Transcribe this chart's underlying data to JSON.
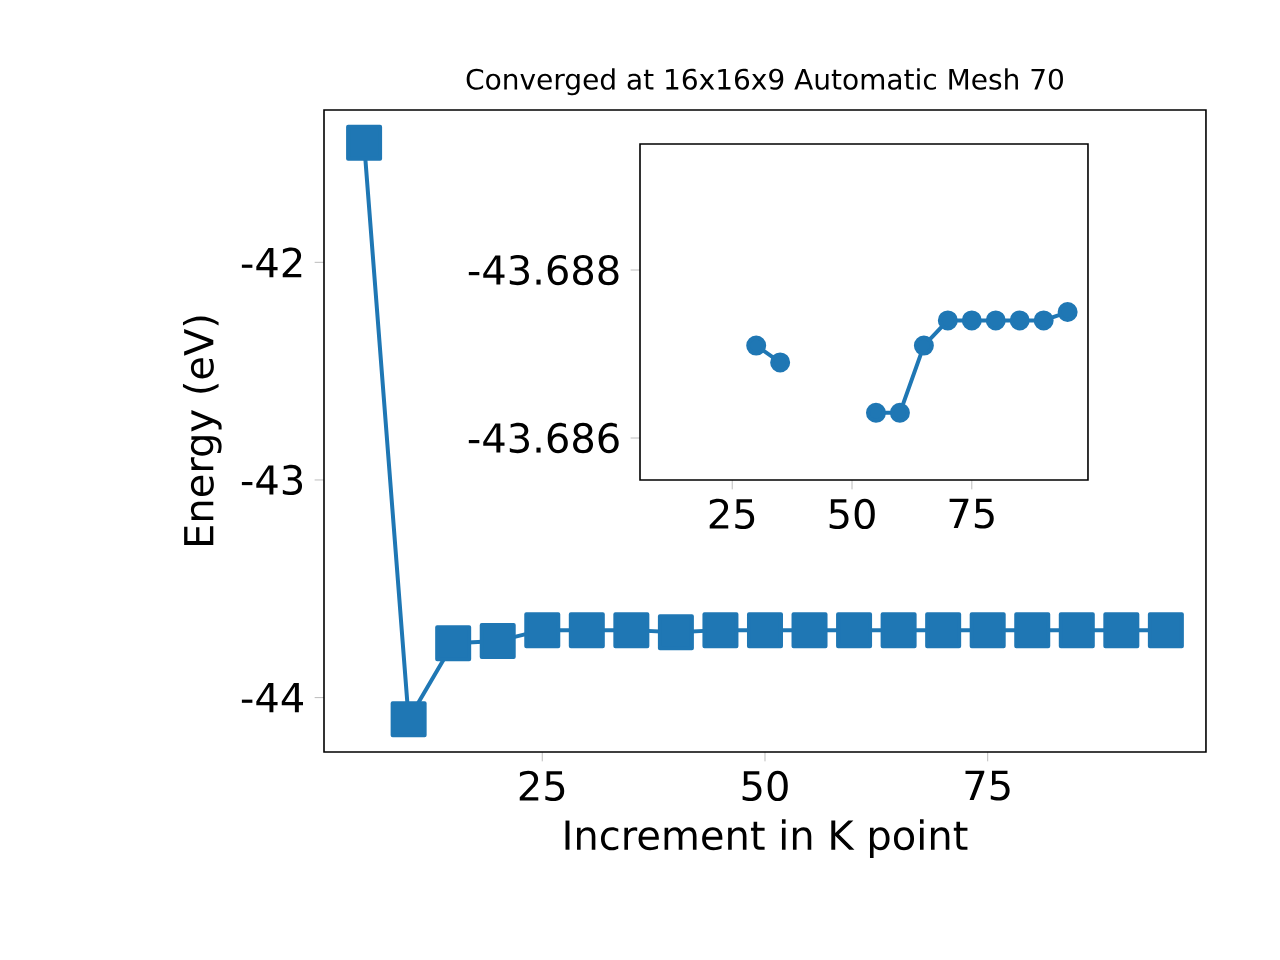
{
  "chart_data": [
    {
      "type": "line",
      "title": "Converged at 16x16x9 Automatic Mesh 70",
      "xlabel": "Increment in K point",
      "ylabel": "Energy (eV)",
      "x": [
        5,
        10,
        15,
        20,
        25,
        30,
        35,
        40,
        45,
        50,
        55,
        60,
        65,
        70,
        75,
        80,
        85,
        90,
        95
      ],
      "series": [
        {
          "color": "#1f77b4",
          "values": [
            -41.45,
            -44.1,
            -43.75,
            -43.74,
            -43.69,
            -43.69,
            -43.69,
            -43.7,
            -43.69,
            -43.69,
            -43.69,
            -43.69,
            -43.69,
            -43.69,
            -43.69,
            -43.69,
            -43.69,
            -43.69,
            -43.69
          ]
        }
      ],
      "marker": "square",
      "xlim": [
        0.5,
        99.5
      ],
      "ylim": [
        -44.25,
        -41.3
      ],
      "xticks": [
        25,
        50,
        75
      ],
      "yticks": [
        -42,
        -43,
        -44
      ]
    },
    {
      "type": "line",
      "x": [
        30,
        35,
        40,
        45,
        50,
        55,
        60,
        65,
        70,
        75,
        80,
        85,
        90,
        95
      ],
      "series": [
        {
          "color": "#1f77b4",
          "values": [
            -43.6871,
            -43.6869,
            null,
            null,
            null,
            -43.6863,
            -43.6863,
            -43.6871,
            -43.6874,
            -43.6874,
            -43.6874,
            -43.6874,
            -43.6874,
            -43.6875
          ]
        }
      ],
      "marker": "circle",
      "xlim": [
        5.75,
        99.25
      ],
      "ylim": [
        -43.6855,
        -43.6895
      ],
      "xticks": [
        25,
        50,
        75
      ],
      "yticks": [
        -43.688,
        -43.686
      ]
    }
  ]
}
